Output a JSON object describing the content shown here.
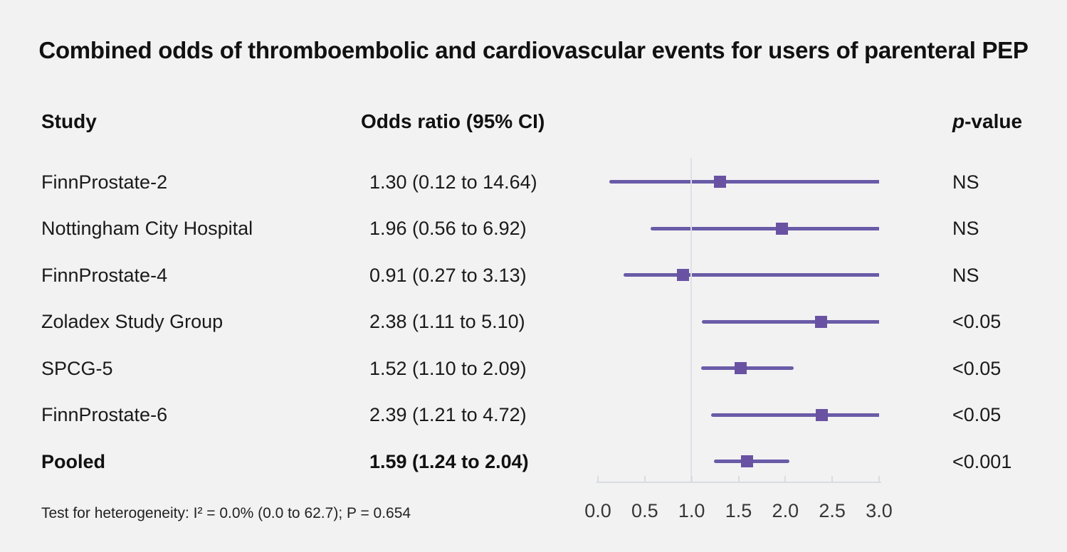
{
  "title": "Combined odds of thromboembolic and cardiovascular events for users of parenteral PEP",
  "columns": {
    "study": "Study",
    "odds_ratio": "Odds ratio (95% CI)",
    "p_italic": "p",
    "p_rest": "-value"
  },
  "footer": {
    "heterogeneity": "Test for heterogeneity: I² = 0.0% (0.0 to 62.7); P = 0.654"
  },
  "colors": {
    "background": "#f2f2f2",
    "ci_line": "#6a5ba8",
    "or_marker": "#6a52a3",
    "reference_line": "#dde1e5",
    "axis": "#d9dde1",
    "text": "#1a1a1a"
  },
  "chart_data": {
    "type": "forest",
    "title": "Combined odds of thromboembolic and cardiovascular events for users of parenteral PEP",
    "xlabel": "Odds ratio",
    "xlim": [
      0.0,
      3.0
    ],
    "reference_line_x": 1.0,
    "x_ticks": [
      0.0,
      0.5,
      1.0,
      1.5,
      2.0,
      2.5,
      3.0
    ],
    "x_tick_labels": [
      "0.0",
      "0.5",
      "1.0",
      "1.5",
      "2.0",
      "2.5",
      "3.0"
    ],
    "rows": [
      {
        "study": "FinnProstate-2",
        "or": 1.3,
        "ci_low": 0.12,
        "ci_high": 14.64,
        "or_label": "1.30 (0.12 to 14.64)",
        "p_value": "NS",
        "bold": false
      },
      {
        "study": "Nottingham City Hospital",
        "or": 1.96,
        "ci_low": 0.56,
        "ci_high": 6.92,
        "or_label": "1.96 (0.56 to 6.92)",
        "p_value": "NS",
        "bold": false
      },
      {
        "study": "FinnProstate-4",
        "or": 0.91,
        "ci_low": 0.27,
        "ci_high": 3.13,
        "or_label": "0.91 (0.27 to 3.13)",
        "p_value": "NS",
        "bold": false
      },
      {
        "study": "Zoladex Study Group",
        "or": 2.38,
        "ci_low": 1.11,
        "ci_high": 5.1,
        "or_label": "2.38 (1.11 to 5.10)",
        "p_value": "<0.05",
        "bold": false
      },
      {
        "study": "SPCG-5",
        "or": 1.52,
        "ci_low": 1.1,
        "ci_high": 2.09,
        "or_label": "1.52 (1.10 to 2.09)",
        "p_value": "<0.05",
        "bold": false
      },
      {
        "study": "FinnProstate-6",
        "or": 2.39,
        "ci_low": 1.21,
        "ci_high": 4.72,
        "or_label": "2.39 (1.21 to 4.72)",
        "p_value": "<0.05",
        "bold": false
      },
      {
        "study": "Pooled",
        "or": 1.59,
        "ci_low": 1.24,
        "ci_high": 2.04,
        "or_label": "1.59 (1.24 to 2.04)",
        "p_value": "<0.001",
        "bold": true
      }
    ]
  }
}
